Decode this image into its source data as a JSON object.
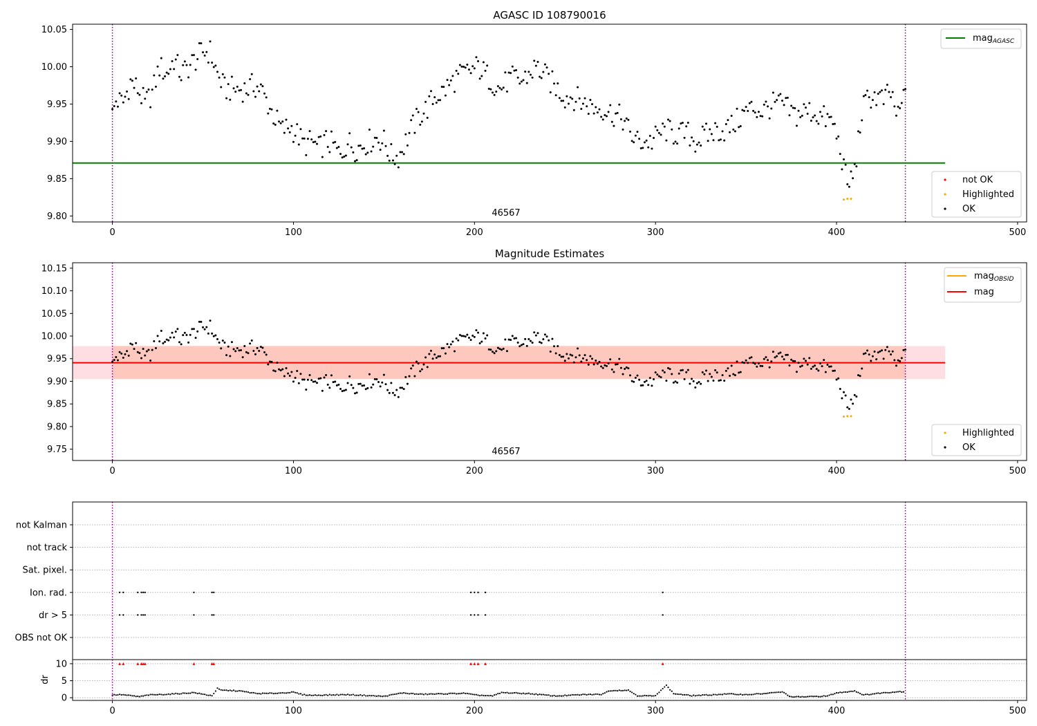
{
  "chart_data": [
    {
      "type": "scatter",
      "title": "AGASC ID 108790016",
      "xlim": [
        -22,
        505
      ],
      "ylim": [
        9.792,
        10.057
      ],
      "xticks": [
        0,
        100,
        200,
        300,
        400,
        500
      ],
      "yticks": [
        9.8,
        9.85,
        9.9,
        9.95,
        10.0,
        10.05
      ],
      "ytick_labels": [
        "9.80",
        "9.85",
        "9.90",
        "9.95",
        "10.00",
        "10.05"
      ],
      "annotation": {
        "text": "46567",
        "x": 218,
        "y": 9.797
      },
      "vlines": [
        0,
        438
      ],
      "hlines": [
        {
          "name": "mag_AGASC",
          "y": 9.871,
          "xmax": 460,
          "color": "#008000"
        }
      ],
      "legend_upper": [
        {
          "label": "mag",
          "sub": "AGASC",
          "color": "#008000"
        }
      ],
      "legend_lower": [
        {
          "label": "not OK",
          "color": "#ff0000"
        },
        {
          "label": "Highlighted",
          "color": "#ffa500"
        },
        {
          "label": "OK",
          "color": "#000000"
        }
      ],
      "series": [
        {
          "name": "OK",
          "color": "#000000",
          "role": "ok",
          "points": [
            [
              0,
              9.935
            ],
            [
              2,
              9.955
            ],
            [
              6,
              9.952
            ],
            [
              10,
              9.98
            ],
            [
              14,
              9.97
            ],
            [
              18,
              9.95
            ],
            [
              22,
              9.965
            ],
            [
              26,
              10.0
            ],
            [
              30,
              9.99
            ],
            [
              34,
              10.01
            ],
            [
              38,
              9.99
            ],
            [
              42,
              10.0
            ],
            [
              46,
              10.01
            ],
            [
              50,
              10.02
            ],
            [
              54,
              10.02
            ],
            [
              58,
              9.99
            ],
            [
              62,
              9.97
            ],
            [
              66,
              9.97
            ],
            [
              70,
              9.97
            ],
            [
              74,
              9.97
            ],
            [
              78,
              9.975
            ],
            [
              82,
              9.97
            ],
            [
              86,
              9.95
            ],
            [
              90,
              9.93
            ],
            [
              94,
              9.915
            ],
            [
              98,
              9.92
            ],
            [
              102,
              9.91
            ],
            [
              106,
              9.895
            ],
            [
              110,
              9.9
            ],
            [
              114,
              9.89
            ],
            [
              118,
              9.9
            ],
            [
              122,
              9.895
            ],
            [
              126,
              9.88
            ],
            [
              130,
              9.9
            ],
            [
              134,
              9.89
            ],
            [
              138,
              9.895
            ],
            [
              142,
              9.9
            ],
            [
              146,
              9.905
            ],
            [
              150,
              9.9
            ],
            [
              154,
              9.88
            ],
            [
              158,
              9.88
            ],
            [
              162,
              9.9
            ],
            [
              166,
              9.92
            ],
            [
              170,
              9.935
            ],
            [
              174,
              9.945
            ],
            [
              178,
              9.96
            ],
            [
              182,
              9.965
            ],
            [
              186,
              9.975
            ],
            [
              190,
              9.985
            ],
            [
              194,
              9.99
            ],
            [
              198,
              9.995
            ],
            [
              202,
              10.0
            ],
            [
              206,
              9.99
            ],
            [
              210,
              9.98
            ],
            [
              214,
              9.97
            ],
            [
              218,
              9.98
            ],
            [
              222,
              9.985
            ],
            [
              226,
              9.98
            ],
            [
              230,
              9.99
            ],
            [
              234,
              10.0
            ],
            [
              238,
              9.99
            ],
            [
              242,
              9.98
            ],
            [
              246,
              9.97
            ],
            [
              250,
              9.96
            ],
            [
              254,
              9.96
            ],
            [
              258,
              9.955
            ],
            [
              262,
              9.95
            ],
            [
              266,
              9.945
            ],
            [
              270,
              9.945
            ],
            [
              274,
              9.94
            ],
            [
              278,
              9.935
            ],
            [
              282,
              9.93
            ],
            [
              286,
              9.91
            ],
            [
              290,
              9.9
            ],
            [
              294,
              9.9
            ],
            [
              298,
              9.9
            ],
            [
              302,
              9.91
            ],
            [
              306,
              9.915
            ],
            [
              310,
              9.91
            ],
            [
              314,
              9.91
            ],
            [
              318,
              9.91
            ],
            [
              322,
              9.9
            ],
            [
              326,
              9.905
            ],
            [
              330,
              9.91
            ],
            [
              334,
              9.915
            ],
            [
              338,
              9.915
            ],
            [
              342,
              9.92
            ],
            [
              346,
              9.93
            ],
            [
              350,
              9.94
            ],
            [
              354,
              9.945
            ],
            [
              358,
              9.94
            ],
            [
              362,
              9.945
            ],
            [
              366,
              9.95
            ],
            [
              370,
              9.95
            ],
            [
              374,
              9.94
            ],
            [
              378,
              9.935
            ],
            [
              382,
              9.94
            ],
            [
              386,
              9.94
            ],
            [
              390,
              9.935
            ],
            [
              394,
              9.93
            ],
            [
              398,
              9.925
            ],
            [
              402,
              9.89
            ],
            [
              406,
              9.84
            ],
            [
              410,
              9.86
            ],
            [
              414,
              9.94
            ],
            [
              418,
              9.96
            ],
            [
              422,
              9.96
            ],
            [
              426,
              9.955
            ],
            [
              430,
              9.965
            ],
            [
              434,
              9.93
            ],
            [
              438,
              9.97
            ]
          ]
        },
        {
          "name": "Highlighted",
          "color": "#ffa500",
          "role": "highlighted",
          "points": [
            [
              404,
              9.822
            ],
            [
              406,
              9.823
            ],
            [
              408,
              9.823
            ]
          ]
        }
      ]
    },
    {
      "type": "scatter",
      "title": "Magnitude Estimates",
      "xlim": [
        -22,
        505
      ],
      "ylim": [
        9.725,
        10.162
      ],
      "xticks": [
        0,
        100,
        200,
        300,
        400,
        500
      ],
      "yticks": [
        9.75,
        9.8,
        9.85,
        9.9,
        9.95,
        10.0,
        10.05,
        10.1,
        10.15
      ],
      "ytick_labels": [
        "9.75",
        "9.80",
        "9.85",
        "9.90",
        "9.95",
        "10.00",
        "10.05",
        "10.10",
        "10.15"
      ],
      "annotation": {
        "text": "46567",
        "x": 218,
        "y": 9.737
      },
      "vlines": [
        0,
        438
      ],
      "bands": [
        {
          "name": "mag_band",
          "ymin": 9.905,
          "ymax": 9.978,
          "xmin": -22,
          "xmax": 460,
          "color": "#ffb6c1",
          "opacity": 0.45
        },
        {
          "name": "obsid_band",
          "ymin": 9.905,
          "ymax": 9.978,
          "xmin": 0,
          "xmax": 438,
          "color": "#ffa07a",
          "opacity": 0.35
        }
      ],
      "hlines": [
        {
          "name": "mag_OBSID",
          "y": 9.941,
          "xmin": 0,
          "xmax": 438,
          "color": "#ffa500"
        },
        {
          "name": "mag",
          "y": 9.941,
          "xmin": -22,
          "xmax": 460,
          "color": "#ff0000"
        }
      ],
      "legend_upper": [
        {
          "label": "mag",
          "sub": "OBSID",
          "color": "#ffa500"
        },
        {
          "label": "mag",
          "sub": "",
          "color": "#ff0000"
        }
      ],
      "legend_lower": [
        {
          "label": "Highlighted",
          "color": "#ffa500"
        },
        {
          "label": "OK",
          "color": "#000000"
        }
      ],
      "series": [
        {
          "name": "OK",
          "color": "#000000",
          "role": "ok",
          "same_as_panel": 0
        },
        {
          "name": "Highlighted",
          "color": "#ffa500",
          "role": "highlighted",
          "points": [
            [
              404,
              9.822
            ],
            [
              406,
              9.823
            ],
            [
              408,
              9.823
            ]
          ]
        }
      ]
    },
    {
      "type": "scatter",
      "xlim": [
        -22,
        505
      ],
      "xticks": [
        0,
        100,
        200,
        300,
        400,
        500
      ],
      "vlines": [
        0,
        438
      ],
      "flag_rows": [
        "not Kalman",
        "not track",
        "Sat. pixel.",
        "Ion. rad.",
        "dr > 5",
        "OBS not OK"
      ],
      "flag_points": {
        "Ion. rad.": [
          4,
          6,
          14,
          16,
          17,
          18,
          45,
          55,
          56,
          198,
          200,
          202,
          206,
          304
        ],
        "dr > 5": [
          4,
          6,
          14,
          16,
          17,
          18,
          45,
          55,
          56,
          198,
          200,
          202,
          206,
          304
        ]
      },
      "dr": {
        "ylabel": "dr",
        "ylim": [
          -0.8,
          11.2
        ],
        "yticks": [
          0,
          5,
          10
        ],
        "ytick_labels": [
          "0",
          "5",
          "10"
        ],
        "clip_value": 10,
        "clipped_x": [
          4,
          6,
          14,
          16,
          17,
          18,
          45,
          55,
          56,
          198,
          200,
          202,
          206,
          304
        ],
        "profile": [
          [
            0,
            0.8
          ],
          [
            5,
            0.9
          ],
          [
            10,
            0.6
          ],
          [
            15,
            0.3
          ],
          [
            20,
            0.8
          ],
          [
            30,
            1.0
          ],
          [
            40,
            1.3
          ],
          [
            45,
            1.5
          ],
          [
            50,
            1.0
          ],
          [
            55,
            0.6
          ],
          [
            58,
            2.7
          ],
          [
            60,
            2.2
          ],
          [
            70,
            2.0
          ],
          [
            80,
            1.2
          ],
          [
            90,
            1.3
          ],
          [
            100,
            1.6
          ],
          [
            105,
            0.9
          ],
          [
            110,
            0.7
          ],
          [
            130,
            0.9
          ],
          [
            150,
            0.4
          ],
          [
            160,
            1.4
          ],
          [
            170,
            1.0
          ],
          [
            180,
            1.1
          ],
          [
            195,
            1.3
          ],
          [
            200,
            0.8
          ],
          [
            210,
            0.5
          ],
          [
            215,
            1.5
          ],
          [
            230,
            1.2
          ],
          [
            245,
            0.5
          ],
          [
            260,
            0.9
          ],
          [
            270,
            1.0
          ],
          [
            275,
            2.1
          ],
          [
            285,
            2.2
          ],
          [
            290,
            0.6
          ],
          [
            300,
            0.5
          ],
          [
            303,
            2.3
          ],
          [
            306,
            3.6
          ],
          [
            310,
            1.2
          ],
          [
            320,
            0.6
          ],
          [
            330,
            0.8
          ],
          [
            340,
            1.1
          ],
          [
            350,
            0.9
          ],
          [
            360,
            1.2
          ],
          [
            370,
            1.7
          ],
          [
            375,
            0.2
          ],
          [
            385,
            0.3
          ],
          [
            395,
            0.5
          ],
          [
            400,
            1.4
          ],
          [
            410,
            2.0
          ],
          [
            415,
            0.8
          ],
          [
            425,
            1.4
          ],
          [
            435,
            1.8
          ],
          [
            438,
            1.7
          ]
        ]
      }
    }
  ]
}
